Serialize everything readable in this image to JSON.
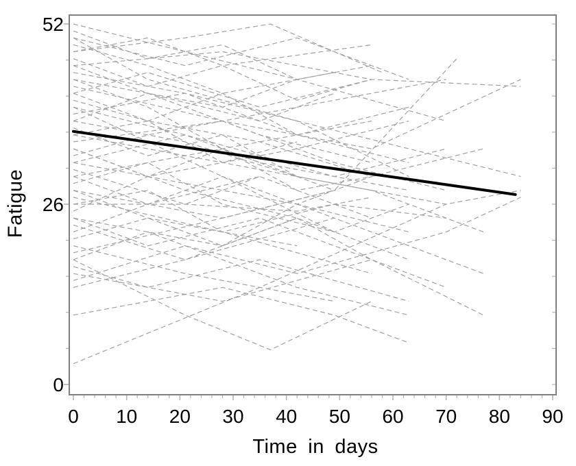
{
  "chart_data": {
    "type": "line",
    "title": "",
    "xlabel": "Time in days",
    "ylabel": "Fatigue",
    "xlim": [
      0,
      90
    ],
    "ylim": [
      0,
      52
    ],
    "xticks": [
      0,
      10,
      20,
      30,
      40,
      50,
      60,
      70,
      80,
      90
    ],
    "yticks": [
      0,
      26,
      52
    ],
    "x_minor_step": 2,
    "y_minor_step": 5.2,
    "grid": "off",
    "legend": "none",
    "style": {
      "background": "#ffffff",
      "frame_color": "#7f7f7f",
      "tick_color": "#b3b3b3",
      "label_color": "#000000",
      "subject_color": "#a0a0a0",
      "subject_dash": "7 4.5",
      "subject_width": 1.2,
      "trend_color": "#000000",
      "trend_width": 4
    },
    "trend_line": {
      "name": "population-mean-trend",
      "x": [
        0,
        83
      ],
      "y": [
        36.5,
        27.4
      ]
    },
    "subjects": [
      {
        "x": [
          0,
          14,
          28,
          42,
          56
        ],
        "y": [
          51,
          47,
          49,
          44,
          46
        ]
      },
      {
        "x": [
          0,
          21,
          37,
          58
        ],
        "y": [
          48,
          50,
          52,
          45
        ]
      },
      {
        "x": [
          0,
          14,
          42,
          63
        ],
        "y": [
          50,
          44,
          38,
          30
        ]
      },
      {
        "x": [
          0,
          28,
          56,
          84
        ],
        "y": [
          46,
          48,
          44,
          43
        ]
      },
      {
        "x": [
          0,
          14,
          28,
          49
        ],
        "y": [
          44,
          40,
          34,
          28
        ]
      },
      {
        "x": [
          0,
          21,
          42,
          70,
          84
        ],
        "y": [
          38,
          35,
          30,
          26,
          28
        ]
      },
      {
        "x": [
          0,
          14,
          35,
          56
        ],
        "y": [
          42,
          45,
          40,
          44
        ]
      },
      {
        "x": [
          0,
          28,
          49
        ],
        "y": [
          40,
          30,
          22
        ]
      },
      {
        "x": [
          0,
          14,
          28,
          42
        ],
        "y": [
          36,
          38,
          32,
          35
        ]
      },
      {
        "x": [
          0,
          21,
          42,
          63
        ],
        "y": [
          34,
          28,
          24,
          18
        ]
      },
      {
        "x": [
          0,
          14,
          28,
          42,
          56
        ],
        "y": [
          32,
          30,
          34,
          28,
          30
        ]
      },
      {
        "x": [
          0,
          28,
          56
        ],
        "y": [
          30,
          34,
          38
        ]
      },
      {
        "x": [
          0,
          14,
          42
        ],
        "y": [
          28,
          24,
          20
        ]
      },
      {
        "x": [
          0,
          21,
          42,
          56
        ],
        "y": [
          26,
          26,
          25,
          27
        ]
      },
      {
        "x": [
          0,
          14,
          28,
          49,
          70
        ],
        "y": [
          26,
          28,
          22,
          26,
          24
        ]
      },
      {
        "x": [
          0,
          28,
          42,
          63
        ],
        "y": [
          24,
          20,
          26,
          22
        ]
      },
      {
        "x": [
          0,
          14,
          35
        ],
        "y": [
          22,
          26,
          30
        ]
      },
      {
        "x": [
          0,
          21,
          49
        ],
        "y": [
          20,
          16,
          12
        ]
      },
      {
        "x": [
          0,
          14,
          28,
          42,
          63
        ],
        "y": [
          18,
          22,
          18,
          14,
          10
        ]
      },
      {
        "x": [
          0,
          28,
          56,
          77
        ],
        "y": [
          16,
          12,
          18,
          10
        ]
      },
      {
        "x": [
          0,
          21,
          42
        ],
        "y": [
          14,
          18,
          24
        ]
      },
      {
        "x": [
          0,
          21,
          37,
          56
        ],
        "y": [
          18,
          10,
          5,
          12
        ]
      },
      {
        "x": [
          0,
          35,
          70
        ],
        "y": [
          3,
          14,
          26
        ]
      },
      {
        "x": [
          0,
          14,
          28,
          42,
          56
        ],
        "y": [
          47,
          43,
          46,
          41,
          44
        ]
      },
      {
        "x": [
          0,
          21,
          42,
          63,
          84
        ],
        "y": [
          45,
          42,
          38,
          34,
          30
        ]
      },
      {
        "x": [
          0,
          14,
          28,
          49
        ],
        "y": [
          49,
          46,
          42,
          45
        ]
      },
      {
        "x": [
          0,
          28,
          56,
          84
        ],
        "y": [
          43,
          38,
          34,
          44
        ]
      },
      {
        "x": [
          0,
          14,
          35,
          56,
          77
        ],
        "y": [
          41,
          38,
          35,
          30,
          34
        ]
      },
      {
        "x": [
          0,
          21,
          42,
          63
        ],
        "y": [
          39,
          42,
          36,
          32
        ]
      },
      {
        "x": [
          0,
          14,
          28,
          42
        ],
        "y": [
          37,
          33,
          36,
          30
        ]
      },
      {
        "x": [
          0,
          28,
          49,
          70
        ],
        "y": [
          35,
          38,
          32,
          28
        ]
      },
      {
        "x": [
          0,
          14,
          42,
          70
        ],
        "y": [
          33,
          36,
          40,
          44
        ]
      },
      {
        "x": [
          0,
          21,
          35,
          56
        ],
        "y": [
          31,
          26,
          30,
          24
        ]
      },
      {
        "x": [
          0,
          14,
          28,
          49,
          63
        ],
        "y": [
          29,
          32,
          26,
          22,
          26
        ]
      },
      {
        "x": [
          0,
          28,
          56
        ],
        "y": [
          27,
          22,
          16
        ]
      },
      {
        "x": [
          0,
          14,
          42,
          63
        ],
        "y": [
          25,
          30,
          34,
          38
        ]
      },
      {
        "x": [
          0,
          21,
          49,
          77
        ],
        "y": [
          23,
          18,
          24,
          16
        ]
      },
      {
        "x": [
          0,
          14,
          28,
          42,
          56
        ],
        "y": [
          21,
          24,
          20,
          24,
          18
        ]
      },
      {
        "x": [
          0,
          28,
          49
        ],
        "y": [
          19,
          24,
          28
        ]
      },
      {
        "x": [
          0,
          14,
          35,
          63
        ],
        "y": [
          17,
          14,
          18,
          12
        ]
      },
      {
        "x": [
          0,
          21,
          42,
          70,
          84
        ],
        "y": [
          15,
          20,
          16,
          22,
          27
        ]
      },
      {
        "x": [
          0,
          14,
          28,
          56
        ],
        "y": [
          48,
          50,
          46,
          49
        ]
      },
      {
        "x": [
          0,
          21,
          42,
          63
        ],
        "y": [
          50,
          46,
          50,
          44
        ]
      },
      {
        "x": [
          0,
          14,
          35,
          49
        ],
        "y": [
          46,
          42,
          38,
          42
        ]
      },
      {
        "x": [
          0,
          28,
          42,
          70
        ],
        "y": [
          44,
          40,
          44,
          38
        ]
      },
      {
        "x": [
          0,
          14,
          28,
          42,
          63
        ],
        "y": [
          42,
          38,
          42,
          36,
          40
        ]
      },
      {
        "x": [
          0,
          21,
          49,
          70
        ],
        "y": [
          40,
          36,
          30,
          34
        ]
      },
      {
        "x": [
          0,
          14,
          35,
          56
        ],
        "y": [
          38,
          42,
          36,
          32
        ]
      },
      {
        "x": [
          0,
          28,
          56,
          77
        ],
        "y": [
          36,
          32,
          28,
          22
        ]
      },
      {
        "x": [
          0,
          14,
          42,
          56
        ],
        "y": [
          34,
          30,
          26,
          30
        ]
      },
      {
        "x": [
          0,
          21,
          35,
          63
        ],
        "y": [
          32,
          36,
          32,
          28
        ]
      },
      {
        "x": [
          0,
          14,
          28,
          49
        ],
        "y": [
          30,
          26,
          30,
          24
        ]
      },
      {
        "x": [
          0,
          28,
          49,
          72
        ],
        "y": [
          28,
          24,
          28,
          47
        ]
      },
      {
        "x": [
          0,
          14,
          35,
          56,
          70
        ],
        "y": [
          24,
          20,
          24,
          18,
          14
        ]
      },
      {
        "x": [
          0,
          21,
          42
        ],
        "y": [
          52,
          48,
          44
        ]
      },
      {
        "x": [
          0,
          28,
          49,
          63
        ],
        "y": [
          10,
          14,
          10,
          6
        ]
      }
    ]
  }
}
